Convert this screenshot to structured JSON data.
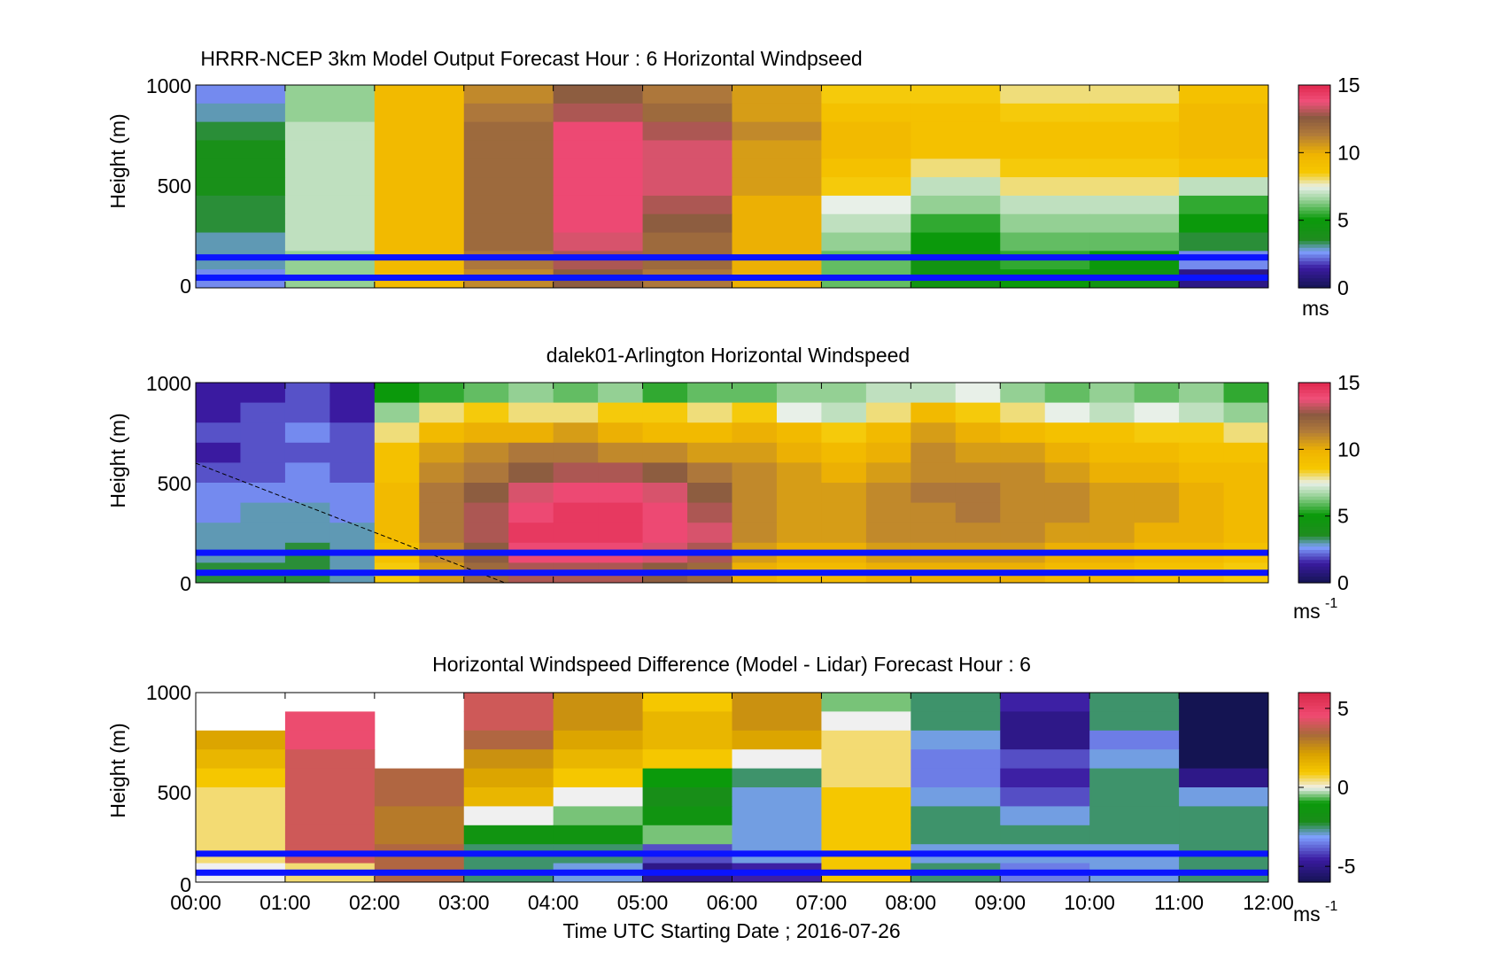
{
  "chart_data": [
    {
      "type": "heatmap",
      "title": "HRRR-NCEP 3km Model Output   Forecast Hour : 6 Horizontal Windpseed",
      "ylabel": "Height (m)",
      "ylim": [
        0,
        1000
      ],
      "yticks": [
        "0",
        "500",
        "1000"
      ],
      "xlim_hours": [
        0,
        12
      ],
      "colorbar": {
        "ticks": [
          "0",
          "5",
          "10",
          "15"
        ],
        "unit": "ms",
        "unit_sup": "",
        "range": [
          0,
          15
        ]
      },
      "blue_lines_m": [
        150,
        50
      ],
      "columns_start_hour": [
        0,
        1,
        2,
        3,
        4,
        5,
        6,
        7,
        8,
        9,
        10,
        11
      ],
      "values": [
        [
          2.5,
          6.5,
          9.5,
          11.0,
          12.5,
          11.5,
          10.5,
          8.5,
          8.5,
          8.0,
          8.0,
          9.0
        ],
        [
          3.0,
          6.5,
          9.5,
          11.5,
          13.0,
          12.0,
          10.5,
          9.0,
          9.0,
          8.5,
          8.5,
          9.5
        ],
        [
          3.5,
          7.0,
          9.5,
          12.0,
          14.0,
          13.0,
          11.0,
          9.5,
          9.0,
          9.0,
          9.0,
          9.5
        ],
        [
          4.0,
          7.0,
          9.5,
          12.0,
          14.0,
          13.5,
          10.5,
          9.5,
          9.0,
          9.0,
          9.0,
          9.5
        ],
        [
          4.0,
          7.0,
          9.5,
          12.0,
          14.0,
          13.5,
          10.5,
          9.0,
          8.0,
          8.5,
          8.5,
          9.0
        ],
        [
          4.0,
          7.0,
          9.5,
          12.0,
          14.0,
          13.5,
          10.5,
          8.5,
          7.0,
          8.0,
          8.0,
          7.0
        ],
        [
          3.5,
          7.0,
          9.5,
          12.0,
          14.0,
          13.0,
          10.0,
          7.5,
          6.5,
          7.0,
          7.0,
          5.5
        ],
        [
          3.5,
          7.0,
          9.5,
          12.0,
          14.0,
          12.5,
          10.0,
          7.0,
          5.5,
          6.5,
          6.5,
          5.0
        ],
        [
          3.0,
          7.0,
          9.5,
          12.0,
          13.5,
          12.0,
          10.0,
          6.5,
          5.0,
          6.0,
          6.0,
          3.5
        ],
        [
          3.0,
          6.5,
          9.5,
          11.5,
          13.0,
          12.0,
          10.0,
          6.0,
          4.5,
          5.5,
          5.0,
          2.5
        ],
        [
          2.5,
          6.5,
          9.5,
          11.0,
          12.5,
          11.5,
          10.0,
          6.0,
          4.5,
          5.0,
          4.5,
          1.0
        ]
      ]
    },
    {
      "type": "heatmap",
      "title": "dalek01-Arlington  Horizontal Windspeed",
      "ylabel": "Height (m)",
      "ylim": [
        0,
        1000
      ],
      "yticks": [
        "0",
        "500",
        "1000"
      ],
      "xlim_hours": [
        0,
        12
      ],
      "colorbar": {
        "ticks": [
          "0",
          "5",
          "10",
          "15"
        ],
        "unit": "ms",
        "unit_sup": "-1",
        "range": [
          0,
          15
        ]
      },
      "blue_lines_m": [
        150,
        50
      ],
      "profile_hours": [
        0.0,
        0.5,
        1.0,
        1.5,
        2.0,
        2.5,
        3.0,
        3.5,
        4.0,
        4.5,
        5.0,
        5.5,
        6.0,
        6.5,
        7.0,
        7.5,
        8.0,
        8.5,
        9.0,
        9.5,
        10.0,
        10.5,
        11.0,
        11.5
      ],
      "values": [
        [
          1.5,
          1.5,
          2.0,
          1.5,
          5.0,
          5.5,
          6.0,
          6.5,
          6.0,
          6.5,
          5.5,
          6.0,
          6.0,
          6.5,
          6.5,
          7.0,
          7.0,
          7.5,
          6.5,
          6.0,
          6.5,
          6.0,
          6.5,
          5.5
        ],
        [
          1.5,
          2.0,
          2.0,
          1.5,
          6.5,
          8.0,
          8.5,
          8.0,
          8.0,
          8.5,
          8.5,
          8.0,
          8.5,
          7.5,
          7.0,
          8.0,
          9.5,
          8.5,
          8.0,
          7.5,
          7.0,
          7.5,
          7.0,
          6.5
        ],
        [
          2.0,
          2.0,
          2.5,
          2.0,
          8.0,
          9.5,
          10.0,
          10.0,
          10.5,
          10.0,
          9.5,
          9.5,
          10.0,
          9.5,
          8.5,
          9.5,
          10.5,
          10.0,
          9.5,
          9.0,
          9.0,
          8.5,
          8.5,
          8.0
        ],
        [
          1.5,
          2.0,
          2.0,
          2.0,
          9.0,
          10.5,
          11.0,
          11.5,
          11.5,
          11.0,
          11.0,
          10.5,
          10.5,
          10.0,
          9.5,
          10.0,
          11.0,
          10.5,
          10.5,
          10.0,
          9.5,
          9.5,
          9.0,
          9.0
        ],
        [
          2.0,
          2.0,
          2.5,
          2.0,
          9.0,
          11.0,
          11.5,
          12.5,
          13.0,
          13.0,
          12.5,
          11.5,
          11.0,
          10.5,
          10.0,
          10.5,
          11.0,
          11.0,
          11.0,
          10.5,
          10.0,
          10.0,
          9.5,
          9.5
        ],
        [
          2.5,
          2.5,
          2.5,
          2.5,
          9.5,
          11.5,
          12.5,
          13.5,
          14.0,
          14.0,
          13.5,
          12.5,
          11.0,
          10.5,
          10.5,
          11.0,
          11.5,
          11.5,
          11.0,
          11.0,
          10.5,
          10.5,
          10.0,
          9.5
        ],
        [
          2.5,
          3.0,
          3.0,
          2.5,
          9.5,
          11.5,
          13.0,
          14.0,
          14.5,
          14.5,
          14.0,
          13.0,
          11.0,
          10.5,
          10.5,
          11.0,
          11.0,
          11.5,
          11.0,
          11.0,
          10.5,
          10.5,
          10.0,
          9.5
        ],
        [
          3.0,
          3.0,
          3.0,
          3.0,
          9.5,
          11.5,
          13.0,
          14.5,
          14.5,
          14.5,
          14.0,
          13.5,
          11.0,
          10.5,
          10.5,
          11.0,
          11.0,
          11.0,
          11.0,
          10.5,
          10.5,
          10.0,
          10.0,
          9.5
        ],
        [
          3.0,
          3.0,
          3.5,
          3.0,
          9.0,
          11.0,
          12.5,
          14.0,
          14.0,
          14.0,
          13.5,
          13.0,
          10.5,
          10.0,
          10.0,
          10.5,
          10.5,
          10.5,
          10.5,
          10.0,
          10.0,
          9.5,
          9.5,
          9.0
        ],
        [
          3.5,
          3.5,
          3.5,
          3.0,
          8.5,
          10.5,
          12.0,
          13.0,
          13.0,
          13.0,
          12.5,
          12.0,
          10.0,
          9.5,
          9.5,
          10.0,
          10.0,
          10.0,
          10.0,
          9.5,
          9.5,
          9.0,
          9.0,
          8.5
        ]
      ]
    },
    {
      "type": "heatmap",
      "title": "Horizontal Windspeed Difference (Model - Lidar) Forecast Hour : 6",
      "xlabel": "Time UTC  Starting Date ; 2016-07-26",
      "ylabel": "Height (m)",
      "ylim": [
        0,
        1000
      ],
      "yticks": [
        "0",
        "500",
        "1000"
      ],
      "xlim_hours": [
        0,
        12
      ],
      "xticks": [
        "00:00",
        "01:00",
        "02:00",
        "03:00",
        "04:00",
        "05:00",
        "06:00",
        "07:00",
        "08:00",
        "09:00",
        "10:00",
        "11:00",
        "12:00"
      ],
      "colorbar": {
        "ticks": [
          "-5",
          "0",
          "5"
        ],
        "unit": "ms",
        "unit_sup": "-1",
        "range": [
          -6,
          6
        ]
      },
      "blue_lines_m": [
        150,
        50
      ],
      "columns_start_hour": [
        0,
        1,
        2,
        3,
        4,
        5,
        6,
        7,
        8,
        9,
        10,
        11
      ],
      "values": [
        [
          null,
          null,
          null,
          4.0,
          2.5,
          1.0,
          2.5,
          -0.5,
          -2.5,
          -4.5,
          -2.5,
          -6.0
        ],
        [
          null,
          4.5,
          null,
          4.0,
          2.5,
          1.5,
          2.5,
          0.0,
          -2.5,
          -5.0,
          -2.5,
          -6.0
        ],
        [
          2.0,
          4.5,
          null,
          3.5,
          2.0,
          1.5,
          2.0,
          0.5,
          -3.0,
          -5.0,
          -3.5,
          -6.0
        ],
        [
          1.5,
          4.0,
          null,
          2.5,
          1.5,
          1.0,
          0.0,
          0.5,
          -3.5,
          -4.0,
          -3.0,
          -6.0
        ],
        [
          1.0,
          4.0,
          3.5,
          2.0,
          1.0,
          -1.0,
          -2.5,
          0.5,
          -3.5,
          -4.5,
          -2.5,
          -5.0
        ],
        [
          0.5,
          4.0,
          3.5,
          1.5,
          0.0,
          -2.0,
          -3.0,
          1.0,
          -3.0,
          -4.0,
          -2.5,
          -3.0
        ],
        [
          0.5,
          4.0,
          3.0,
          0.0,
          -0.5,
          -1.5,
          -3.0,
          1.0,
          -2.5,
          -3.0,
          -2.5,
          -2.5
        ],
        [
          0.5,
          4.0,
          3.0,
          -1.5,
          -1.5,
          -0.5,
          -3.0,
          1.0,
          -2.5,
          -2.5,
          -2.5,
          -2.5
        ],
        [
          0.5,
          4.0,
          3.5,
          -2.5,
          -2.5,
          -4.0,
          -3.0,
          1.0,
          -3.0,
          -3.0,
          -3.0,
          -2.5
        ],
        [
          0.0,
          0.5,
          3.5,
          -2.5,
          -3.0,
          -5.0,
          -4.5,
          1.0,
          -2.5,
          -3.5,
          -3.0,
          -2.5
        ]
      ]
    }
  ]
}
